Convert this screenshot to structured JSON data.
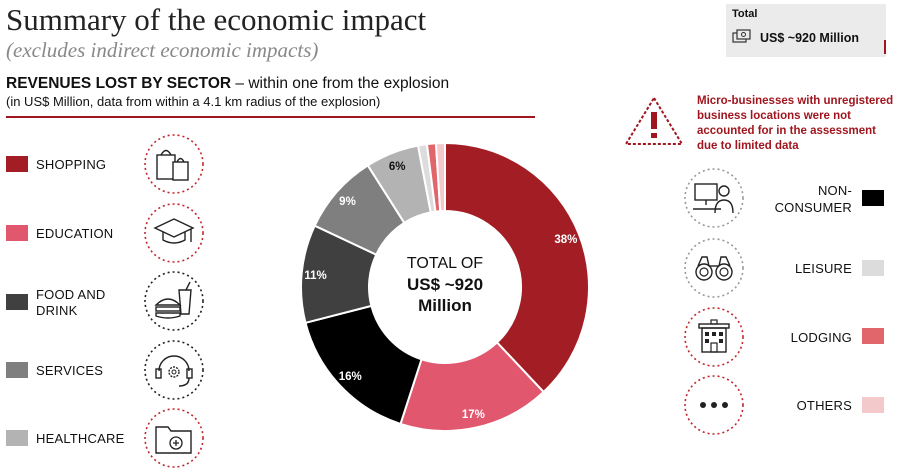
{
  "header": {
    "title": "Summary of the economic impact",
    "subtitle": "(excludes indirect economic impacts)",
    "heading_bold": "REVENUES LOST BY SECTOR",
    "heading_rest": " – within one from the explosion",
    "subheading": "(in US$ Million, data from within a 4.1 km radius of the explosion)"
  },
  "total_box": {
    "label": "Total",
    "value": "US$ ~920 Million"
  },
  "warning": {
    "line1": "Micro-businesses with unregistered",
    "line2": "business locations were not",
    "line3": "accounted for in the assessment",
    "line4": "due to limited data"
  },
  "center": {
    "line1": "TOTAL OF",
    "line2": "US$ ~920",
    "line3": "Million"
  },
  "legend_left": [
    {
      "label1": "SHOPPING",
      "label2": "",
      "color": "#a31d24",
      "icon": "shopping-bags-icon"
    },
    {
      "label1": "EDUCATION",
      "label2": "",
      "color": "#e0576e",
      "icon": "graduation-cap-icon"
    },
    {
      "label1": "FOOD AND",
      "label2": "DRINK",
      "color": "#404040",
      "icon": "burger-drink-icon"
    },
    {
      "label1": "SERVICES",
      "label2": "",
      "color": "#7f7f7f",
      "icon": "headset-gear-icon"
    },
    {
      "label1": "HEALTHCARE",
      "label2": "",
      "color": "#b3b3b3",
      "icon": "medical-folder-icon"
    }
  ],
  "legend_right": [
    {
      "label1": "NON-",
      "label2": "CONSUMER",
      "color": "#000000",
      "icon": "desk-worker-icon"
    },
    {
      "label1": "LEISURE",
      "label2": "",
      "color": "#dcdcdc",
      "icon": "binoculars-icon"
    },
    {
      "label1": "LODGING",
      "label2": "",
      "color": "#e0666b",
      "icon": "hotel-icon"
    },
    {
      "label1": "OTHERS",
      "label2": "",
      "color": "#f4c9cc",
      "icon": "dots-icon"
    }
  ],
  "chart_data": {
    "type": "pie",
    "title": "",
    "categories": [
      "SHOPPING",
      "EDUCATION",
      "NON-CONSUMER",
      "FOOD AND DRINK",
      "SERVICES",
      "HEALTHCARE",
      "LEISURE",
      "LODGING",
      "OTHERS"
    ],
    "values": [
      38,
      17,
      16,
      11,
      9,
      6,
      1,
      1,
      1
    ],
    "labels": [
      "38%",
      "17%",
      "16%",
      "11%",
      "9%",
      "6%",
      "",
      "",
      ""
    ],
    "colors": [
      "#a31d24",
      "#e0576e",
      "#000000",
      "#404040",
      "#7f7f7f",
      "#b3b3b3",
      "#dcdcdc",
      "#e0666b",
      "#f4c9cc"
    ],
    "label_colors": [
      "#ffffff",
      "#ffffff",
      "#ffffff",
      "#ffffff",
      "#ffffff",
      "#111111",
      "#111111",
      "#111111",
      "#111111"
    ],
    "donut": true
  }
}
